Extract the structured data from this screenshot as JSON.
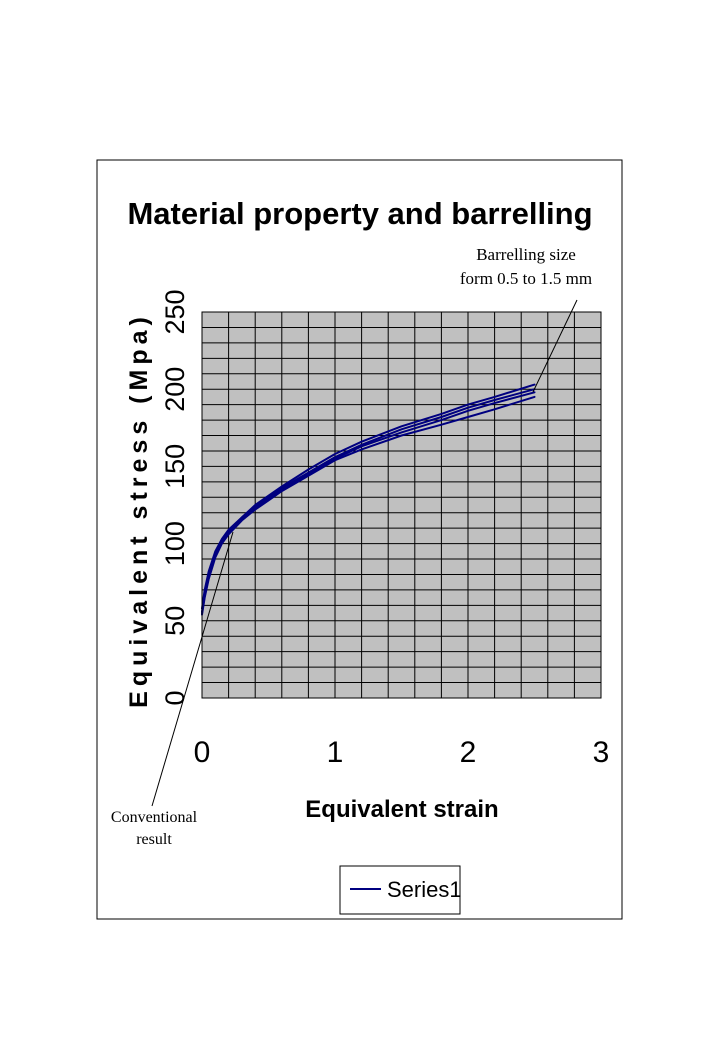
{
  "chart_data": {
    "type": "line",
    "title": "Material property and barrelling",
    "xlabel": "Equivalent strain",
    "ylabel": "Equivalent stress (Mpa)",
    "xlim": [
      0,
      3
    ],
    "ylim": [
      0,
      250
    ],
    "x_ticks": [
      "0",
      "1",
      "2",
      "3"
    ],
    "y_ticks": [
      "0",
      "50",
      "100",
      "150",
      "200",
      "250"
    ],
    "grid": true,
    "legend": {
      "position": "bottom",
      "entries": [
        "Series1"
      ]
    },
    "colors": {
      "series": "#000080",
      "plot_background": "#c0c0c0",
      "grid": "#000000"
    },
    "series": [
      {
        "name": "Series1",
        "x": [
          0,
          0.02,
          0.05,
          0.1,
          0.15,
          0.2,
          0.3,
          0.4,
          0.5,
          0.6,
          0.8,
          1.0,
          1.2,
          1.5,
          1.8,
          2.0,
          2.2,
          2.5
        ],
        "y": [
          58,
          70,
          82,
          95,
          103,
          109,
          117,
          125,
          131,
          137,
          148,
          158,
          166,
          176,
          184,
          190,
          195,
          203
        ]
      },
      {
        "name": "Series1",
        "x": [
          0,
          0.02,
          0.05,
          0.1,
          0.15,
          0.2,
          0.3,
          0.4,
          0.5,
          0.6,
          0.8,
          1.0,
          1.2,
          1.5,
          1.8,
          2.0,
          2.2,
          2.5
        ],
        "y": [
          56,
          68,
          80,
          93,
          102,
          108,
          117,
          124,
          130,
          136,
          146,
          156,
          164,
          174,
          182,
          188,
          193,
          200
        ]
      },
      {
        "name": "Series1",
        "x": [
          0,
          0.02,
          0.05,
          0.1,
          0.15,
          0.2,
          0.3,
          0.4,
          0.5,
          0.6,
          0.8,
          1.0,
          1.2,
          1.5,
          1.8,
          2.0,
          2.2,
          2.5
        ],
        "y": [
          55,
          66,
          78,
          92,
          101,
          107,
          116,
          123,
          129,
          135,
          145,
          155,
          163,
          172,
          180,
          186,
          191,
          198
        ]
      },
      {
        "name": "Series1",
        "x": [
          0,
          0.02,
          0.05,
          0.1,
          0.15,
          0.2,
          0.3,
          0.4,
          0.5,
          0.6,
          0.8,
          1.0,
          1.2,
          1.5,
          1.8,
          2.0,
          2.2,
          2.5
        ],
        "y": [
          54,
          65,
          77,
          91,
          100,
          106,
          115,
          122,
          128,
          134,
          144,
          154,
          161,
          170,
          177,
          182,
          187,
          195
        ]
      }
    ],
    "annotations": [
      {
        "text_lines": [
          "Barrelling size",
          "form 0.5 to 1.5 mm"
        ],
        "points_to": {
          "x": 2.5,
          "y": 201
        }
      },
      {
        "text_lines": [
          "Conventional",
          "result"
        ],
        "points_to": {
          "x": 0.22,
          "y": 108
        }
      }
    ]
  }
}
